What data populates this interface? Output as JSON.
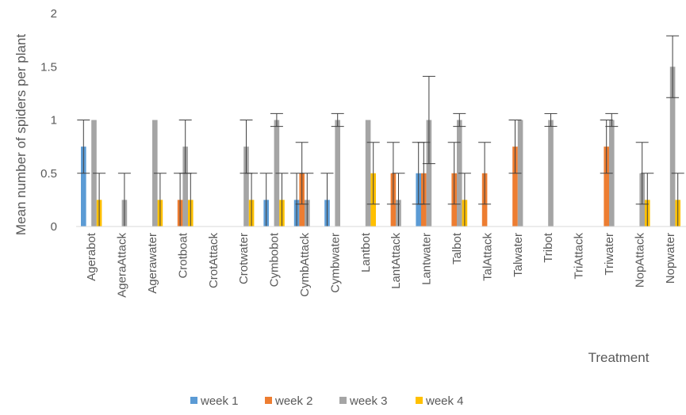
{
  "chart_data": {
    "type": "bar",
    "title": "",
    "xlabel": "Treatment",
    "ylabel": "Mean number of spiders per plant",
    "ylim": [
      0,
      2
    ],
    "yticks": [
      0,
      0.5,
      1,
      1.5,
      2
    ],
    "ytick_labels": [
      "0",
      "0.5",
      "1",
      "1.5",
      "2"
    ],
    "grid": false,
    "legend_position": "bottom",
    "categories": [
      "Agerabot",
      "AgeraAttack",
      "Agerawater",
      "Crotboat",
      "CrotAttack",
      "Crotwater",
      "Cymbobot",
      "CymbAttack",
      "Cymbwater",
      "Lantbot",
      "LantAttack",
      "Lantwater",
      "Talbot",
      "TalAttack",
      "Talwater",
      "Tribot",
      "TriAttack",
      "Triwater",
      "NopAttack",
      "Nopwater"
    ],
    "series": [
      {
        "name": "week 1",
        "color": "#5B9BD5",
        "values": [
          0.75,
          0,
          0,
          0,
          0,
          0,
          0.25,
          0.25,
          0.25,
          0,
          0,
          0.5,
          0,
          0,
          0,
          0,
          0,
          0,
          0,
          0
        ],
        "errors": [
          0.25,
          0,
          0,
          0,
          0,
          0,
          0.25,
          0.25,
          0.25,
          0,
          0,
          0.29,
          0,
          0,
          0,
          0,
          0,
          0,
          0,
          0
        ]
      },
      {
        "name": "week 2",
        "color": "#ED7D31",
        "values": [
          0,
          0,
          0,
          0.25,
          0,
          0,
          0,
          0.5,
          0,
          0,
          0.5,
          0.5,
          0.5,
          0.5,
          0.75,
          0,
          0,
          0.75,
          0,
          0
        ],
        "errors": [
          0,
          0,
          0,
          0.25,
          0,
          0,
          0,
          0.29,
          0,
          0,
          0.29,
          0.29,
          0.29,
          0.29,
          0.25,
          0,
          0,
          0.25,
          0,
          0
        ],
        "error_caps": [
          true,
          false,
          false,
          true,
          false,
          false,
          false,
          true,
          false,
          false,
          true,
          true,
          true,
          true,
          true,
          false,
          false,
          true,
          false,
          false
        ]
      },
      {
        "name": "week 3",
        "color": "#A5A5A5",
        "values": [
          1,
          0.25,
          1,
          0.75,
          0,
          0.75,
          1,
          0.25,
          1,
          1,
          0.25,
          1,
          1,
          0,
          1,
          1,
          0,
          1,
          0.5,
          1.5
        ],
        "errors": [
          0,
          0.25,
          0,
          0.25,
          0,
          0.25,
          0.06,
          0.25,
          0.06,
          0,
          0.25,
          0.41,
          0.06,
          0,
          0,
          0.06,
          0,
          0.06,
          0.29,
          0.29
        ]
      },
      {
        "name": "week 4",
        "color": "#FFC000",
        "values": [
          0.25,
          0,
          0.25,
          0.25,
          0,
          0.25,
          0.25,
          0,
          0,
          0.5,
          0,
          0,
          0.25,
          0,
          0,
          0,
          0,
          0,
          0.25,
          0.25
        ],
        "errors": [
          0.25,
          0,
          0.25,
          0.25,
          0,
          0.25,
          0.25,
          0,
          0,
          0.29,
          0,
          0,
          0.25,
          0,
          0,
          0,
          0,
          0,
          0.25,
          0.25
        ]
      }
    ]
  }
}
